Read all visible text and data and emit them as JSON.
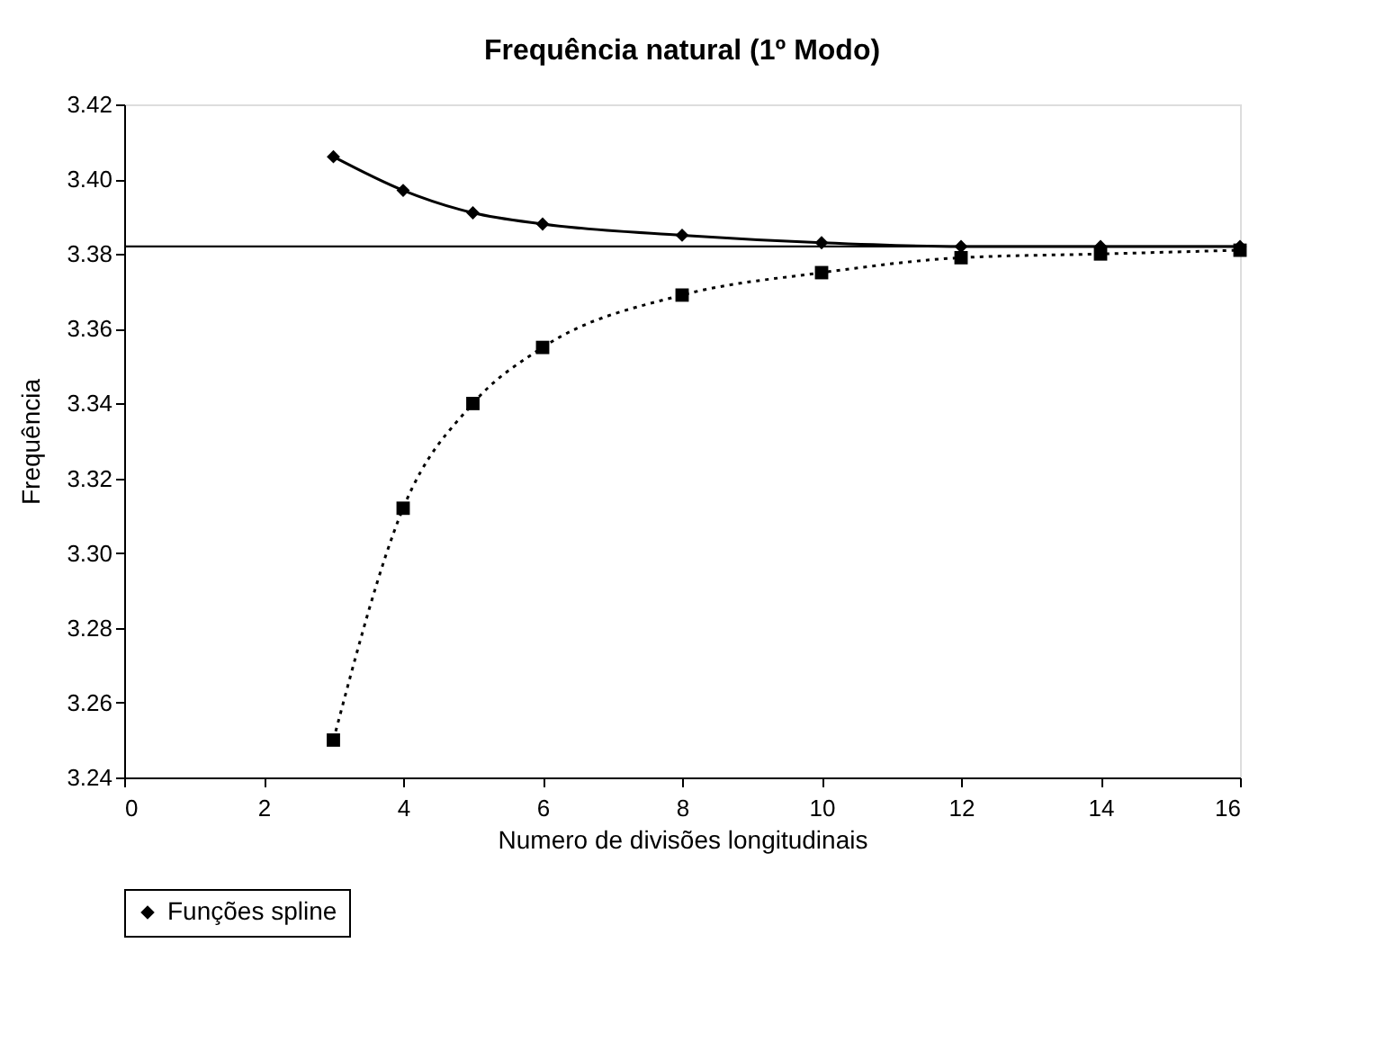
{
  "chart_data": {
    "type": "line",
    "title": "Frequência natural (1º Modo)",
    "xlabel": "Numero de divisões longitudinais",
    "ylabel": "Frequência",
    "xlim": [
      0,
      16
    ],
    "xticks": [
      0,
      2,
      4,
      6,
      8,
      10,
      12,
      14,
      16
    ],
    "ylim": [
      3.24,
      3.42
    ],
    "yticks": [
      3.24,
      3.26,
      3.28,
      {
        "value": 3.3,
        "label": "3.30"
      },
      3.32,
      3.34,
      3.36,
      3.38,
      {
        "value": 3.4,
        "label": "3.40"
      },
      3.42
    ],
    "grid": false,
    "legend": "bottom",
    "ref_lines": [
      {
        "axis": "y",
        "value": 3.382,
        "color": "#000000",
        "line_style": "solid"
      }
    ],
    "series": [
      {
        "name": "Funções spline",
        "color": "#000000",
        "marker": "diamond",
        "line_style": "solid",
        "x": [
          3,
          4,
          5,
          6,
          8,
          10,
          12,
          14,
          16
        ],
        "values": [
          3.406,
          3.397,
          3.391,
          3.388,
          3.385,
          3.383,
          3.382,
          3.382,
          3.382
        ]
      },
      {
        "color": "#000000",
        "marker": "square",
        "line_style": "dotted",
        "x": [
          3,
          4,
          5,
          6,
          8,
          10,
          12,
          14,
          16
        ],
        "values": [
          3.25,
          3.312,
          3.34,
          3.355,
          3.369,
          3.375,
          3.379,
          3.38,
          3.381
        ]
      }
    ]
  }
}
